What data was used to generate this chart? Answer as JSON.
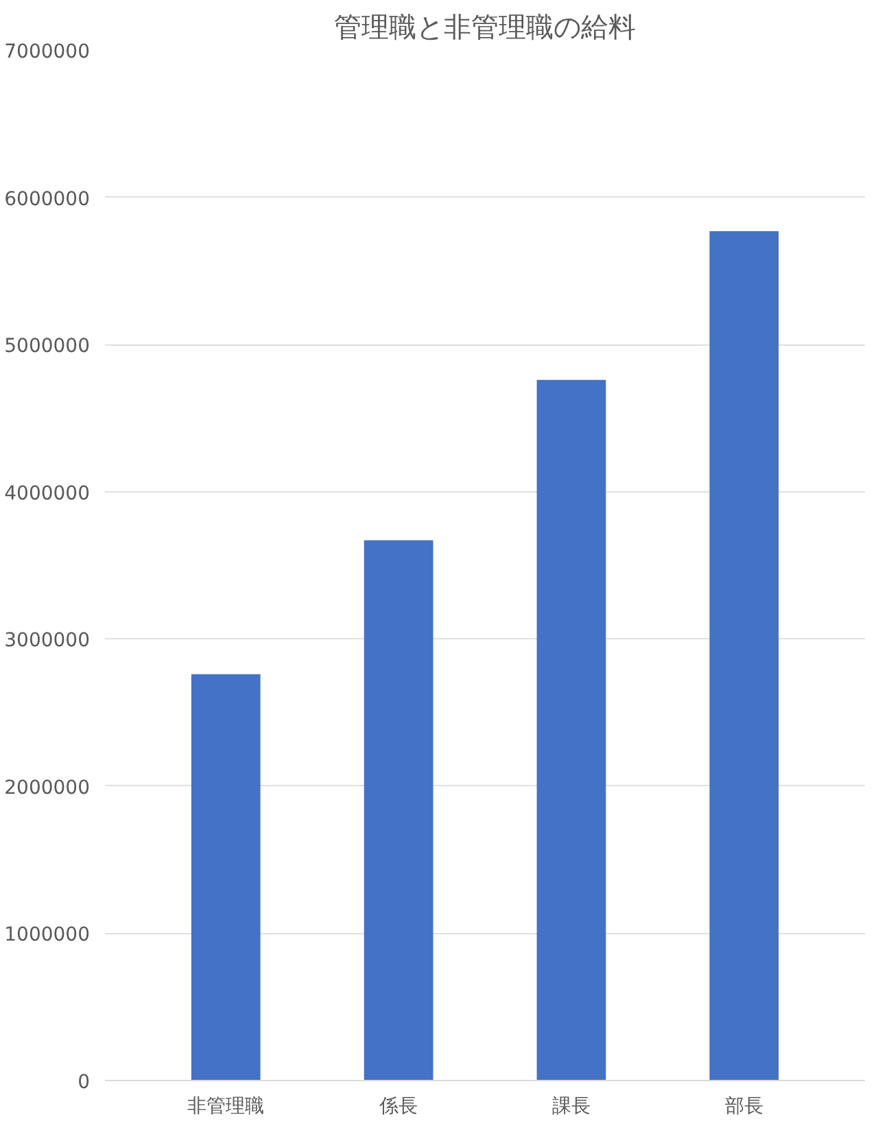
{
  "chart_data": {
    "type": "bar",
    "title": "管理職と非管理職の給料",
    "categories": [
      "非管理職",
      "係長",
      "課長",
      "部長"
    ],
    "values": [
      2760000,
      3670000,
      4760000,
      5770000
    ],
    "color": "#4472c4",
    "ylim": [
      0,
      7000000
    ],
    "yticks": [
      0,
      1000000,
      2000000,
      3000000,
      4000000,
      5000000,
      6000000,
      7000000
    ],
    "grid": "y"
  }
}
